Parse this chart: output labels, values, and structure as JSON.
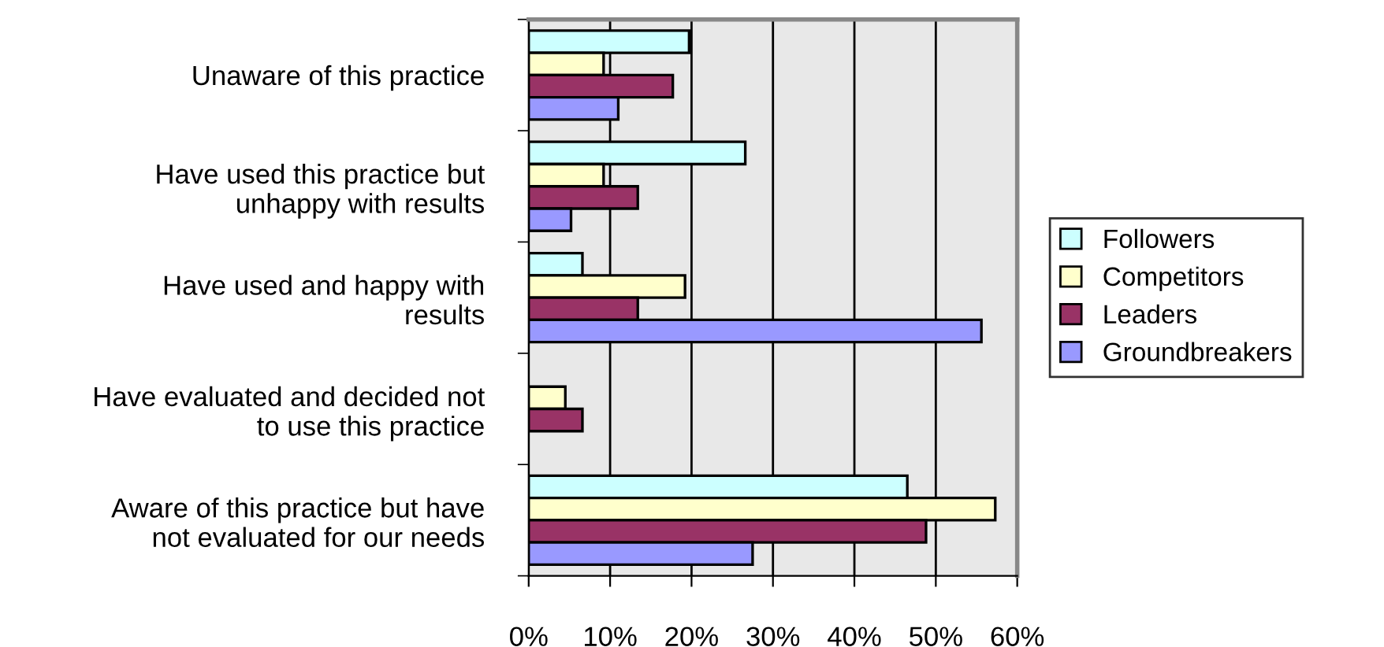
{
  "chart_data": {
    "type": "bar",
    "orientation": "horizontal",
    "categories": [
      "Unaware of this practice",
      "Have used this practice but\nunhappy with results",
      "Have used and happy with\nresults",
      "Have evaluated and decided not\nto use this practice",
      "Aware of this practice but have\nnot evaluated for our needs"
    ],
    "series": [
      {
        "name": "Followers",
        "color": "#ccffff",
        "values": [
          19.7,
          26.6,
          6.6,
          null,
          46.5
        ]
      },
      {
        "name": "Competitors",
        "color": "#ffffcc",
        "values": [
          9.2,
          9.2,
          19.2,
          4.5,
          57.3
        ]
      },
      {
        "name": "Leaders",
        "color": "#993366",
        "values": [
          17.7,
          13.4,
          13.4,
          6.6,
          48.8
        ]
      },
      {
        "name": "Groundbreakers",
        "color": "#9999ff",
        "values": [
          11,
          5.2,
          55.6,
          null,
          27.5
        ]
      }
    ],
    "xlim": [
      0,
      60
    ],
    "xticks": [
      {
        "value": 0,
        "label": "0%"
      },
      {
        "value": 10,
        "label": "10%"
      },
      {
        "value": 20,
        "label": "20%"
      },
      {
        "value": 30,
        "label": "30%"
      },
      {
        "value": 40,
        "label": "40%"
      },
      {
        "value": 50,
        "label": "50%"
      },
      {
        "value": 60,
        "label": "60%"
      }
    ],
    "grid": "x",
    "legend": "right"
  }
}
